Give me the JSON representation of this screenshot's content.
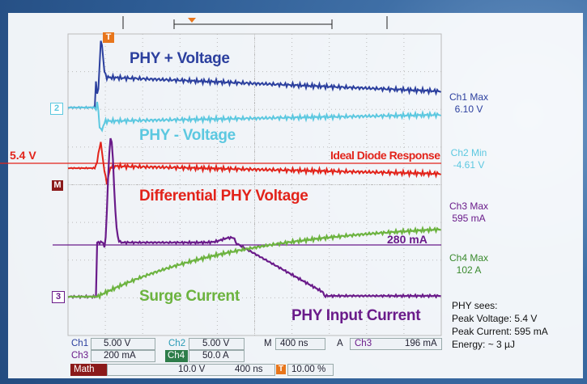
{
  "plot_labels": {
    "ch1": "PHY + Voltage",
    "ch2": "PHY - Voltage",
    "level": "5.4 V",
    "ideal": "Ideal Diode Response",
    "math": "Differential PHY Voltage",
    "current_level": "280 mA",
    "surge": "Surge Current",
    "input": "PHY Input Current"
  },
  "markers": {
    "trigger": "T",
    "ch2": "2",
    "math": "M",
    "ch3": "3"
  },
  "readouts": [
    {
      "label": "Ch1 Max",
      "value": "6.10 V"
    },
    {
      "label": "Ch2 Min",
      "value": "-4.61 V"
    },
    {
      "label": "Ch3 Max",
      "value": "595 mA"
    },
    {
      "label": "Ch4 Max",
      "value": "102 A"
    }
  ],
  "summary": {
    "title": "PHY sees:",
    "lines": [
      "Peak Voltage: 5.4 V",
      "Peak Current: 595 mA",
      "Energy: ~ 3 µJ"
    ]
  },
  "status": {
    "row1": [
      "Ch1",
      "5.00 V",
      "Ch2",
      "5.00 V",
      "M",
      "400 ns",
      "A",
      "Ch3",
      "196 mA"
    ],
    "row2": [
      "Ch3",
      "200 mA",
      "Ch4",
      "50.0 A"
    ],
    "row3": [
      "Math",
      "10.0 V",
      "400 ns",
      "10.00 %"
    ]
  }
}
